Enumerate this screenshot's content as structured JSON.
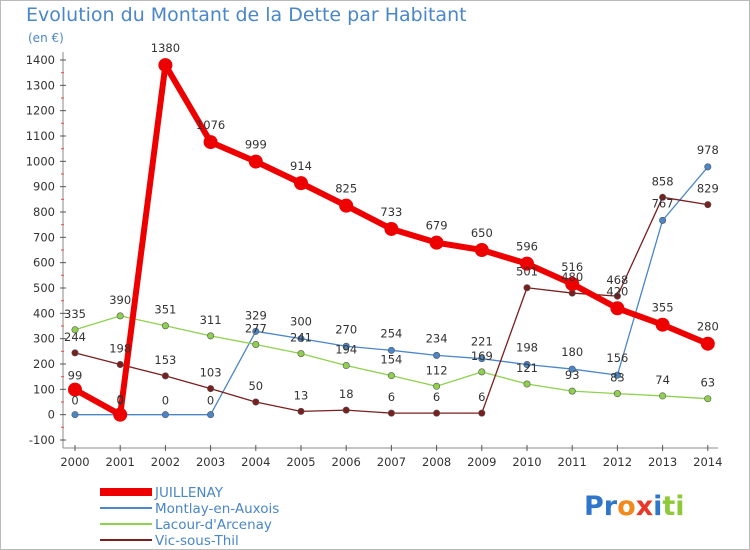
{
  "title": "Evolution du Montant de la Dette par Habitant",
  "subtitle": "(en €)",
  "logo_text": "Proxiti",
  "chart_data": {
    "type": "line",
    "x": [
      2000,
      2001,
      2002,
      2003,
      2004,
      2005,
      2006,
      2007,
      2008,
      2009,
      2010,
      2011,
      2012,
      2013,
      2014
    ],
    "ylim": [
      -100,
      1400
    ],
    "yticks": [
      -100,
      0,
      100,
      200,
      300,
      400,
      500,
      600,
      700,
      800,
      900,
      1000,
      1100,
      1200,
      1300,
      1400
    ],
    "grid": false,
    "legend_position": "bottom-left",
    "series": [
      {
        "name": "JUILLENAY",
        "color": "#ee0000",
        "values": [
          99,
          0,
          1380,
          1076,
          999,
          914,
          825,
          733,
          679,
          650,
          596,
          516,
          420,
          355,
          280
        ]
      },
      {
        "name": "Montlay-en-Auxois",
        "color": "#4a86c8",
        "values": [
          0,
          0,
          0,
          0,
          329,
          300,
          270,
          254,
          234,
          221,
          198,
          180,
          156,
          767,
          978
        ]
      },
      {
        "name": "Lacour-d'Arcenay",
        "color": "#8fd14f",
        "values": [
          335,
          390,
          351,
          311,
          277,
          241,
          194,
          154,
          112,
          169,
          121,
          93,
          83,
          74,
          63
        ]
      },
      {
        "name": "Vic-sous-Thil",
        "color": "#7a1f1f",
        "values": [
          244,
          198,
          153,
          103,
          50,
          13,
          18,
          6,
          6,
          6,
          501,
          480,
          468,
          858,
          829
        ]
      }
    ]
  }
}
